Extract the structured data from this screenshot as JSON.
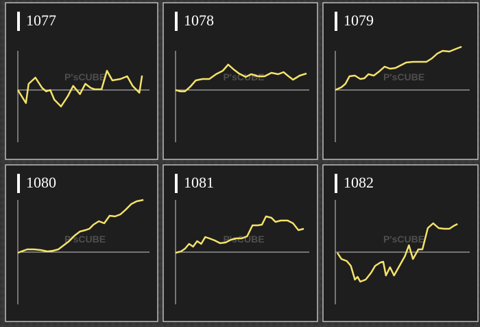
{
  "watermark": "P'sCUBE",
  "chart_data": [
    {
      "type": "line",
      "title": "1077",
      "color": "#f5e36a",
      "xlim": [
        0,
        195
      ],
      "ylim": [
        -80,
        60
      ],
      "x": [
        0,
        12,
        16,
        26,
        36,
        42,
        48,
        54,
        64,
        74,
        82,
        92,
        100,
        108,
        114,
        124,
        132,
        140,
        152,
        162,
        170,
        180,
        184
      ],
      "values": [
        0,
        -19,
        9,
        18,
        3,
        -2,
        0,
        -14,
        -24,
        -9,
        6,
        -6,
        9,
        3,
        1,
        1,
        28,
        14,
        16,
        20,
        6,
        -4,
        21
      ]
    },
    {
      "type": "line",
      "title": "1078",
      "color": "#f5e36a",
      "xlim": [
        0,
        195
      ],
      "ylim": [
        -80,
        60
      ],
      "x": [
        0,
        7,
        14,
        22,
        30,
        40,
        50,
        60,
        70,
        78,
        86,
        94,
        104,
        112,
        122,
        132,
        142,
        152,
        160,
        166,
        174,
        184,
        194
      ],
      "values": [
        0,
        -2,
        -2,
        5,
        14,
        16,
        16,
        23,
        28,
        37,
        30,
        24,
        19,
        23,
        20,
        20,
        25,
        23,
        26,
        21,
        15,
        21,
        24
      ]
    },
    {
      "type": "line",
      "title": "1079",
      "color": "#f5e36a",
      "xlim": [
        0,
        195
      ],
      "ylim": [
        -80,
        60
      ],
      "x": [
        0,
        9,
        15,
        21,
        29,
        37,
        43,
        49,
        57,
        65,
        73,
        81,
        89,
        97,
        105,
        115,
        125,
        135,
        143,
        151,
        159,
        169,
        179,
        187
      ],
      "values": [
        0,
        4,
        9,
        20,
        21,
        16,
        17,
        23,
        21,
        27,
        34,
        31,
        32,
        36,
        40,
        41,
        41,
        41,
        46,
        53,
        57,
        56,
        60,
        63
      ]
    },
    {
      "type": "line",
      "title": "1080",
      "color": "#f5e36a",
      "xlim": [
        0,
        195
      ],
      "ylim": [
        -80,
        80
      ],
      "x": [
        0,
        8,
        14,
        24,
        34,
        44,
        52,
        60,
        68,
        76,
        84,
        92,
        100,
        106,
        112,
        120,
        128,
        136,
        144,
        152,
        160,
        168,
        176,
        186
      ],
      "values": [
        -1,
        2,
        4,
        4,
        3,
        1,
        2,
        4,
        10,
        16,
        24,
        30,
        32,
        34,
        40,
        45,
        42,
        53,
        52,
        55,
        62,
        70,
        74,
        76
      ]
    },
    {
      "type": "line",
      "title": "1081",
      "color": "#f5e36a",
      "xlim": [
        0,
        195
      ],
      "ylim": [
        -80,
        80
      ],
      "x": [
        0,
        8,
        14,
        20,
        26,
        32,
        38,
        44,
        50,
        58,
        66,
        74,
        82,
        90,
        98,
        106,
        114,
        122,
        128,
        134,
        142,
        148,
        156,
        166,
        174,
        182,
        190
      ],
      "values": [
        -1,
        1,
        5,
        12,
        8,
        16,
        12,
        22,
        20,
        17,
        13,
        14,
        18,
        20,
        20,
        23,
        39,
        39,
        40,
        52,
        50,
        44,
        46,
        46,
        42,
        32,
        34
      ]
    },
    {
      "type": "line",
      "title": "1082",
      "color": "#f5e36a",
      "xlim": [
        0,
        195
      ],
      "ylim": [
        -80,
        80
      ],
      "x": [
        3,
        9,
        17,
        23,
        29,
        33,
        37,
        45,
        53,
        59,
        67,
        71,
        75,
        81,
        87,
        95,
        103,
        109,
        115,
        123,
        129,
        137,
        145,
        153,
        161,
        169,
        175,
        181
      ],
      "values": [
        -1,
        -10,
        -13,
        -20,
        -40,
        -36,
        -43,
        -40,
        -30,
        -20,
        -15,
        -14,
        -34,
        -22,
        -34,
        -20,
        -6,
        10,
        -10,
        4,
        4,
        35,
        42,
        35,
        34,
        34,
        38,
        41
      ]
    }
  ]
}
